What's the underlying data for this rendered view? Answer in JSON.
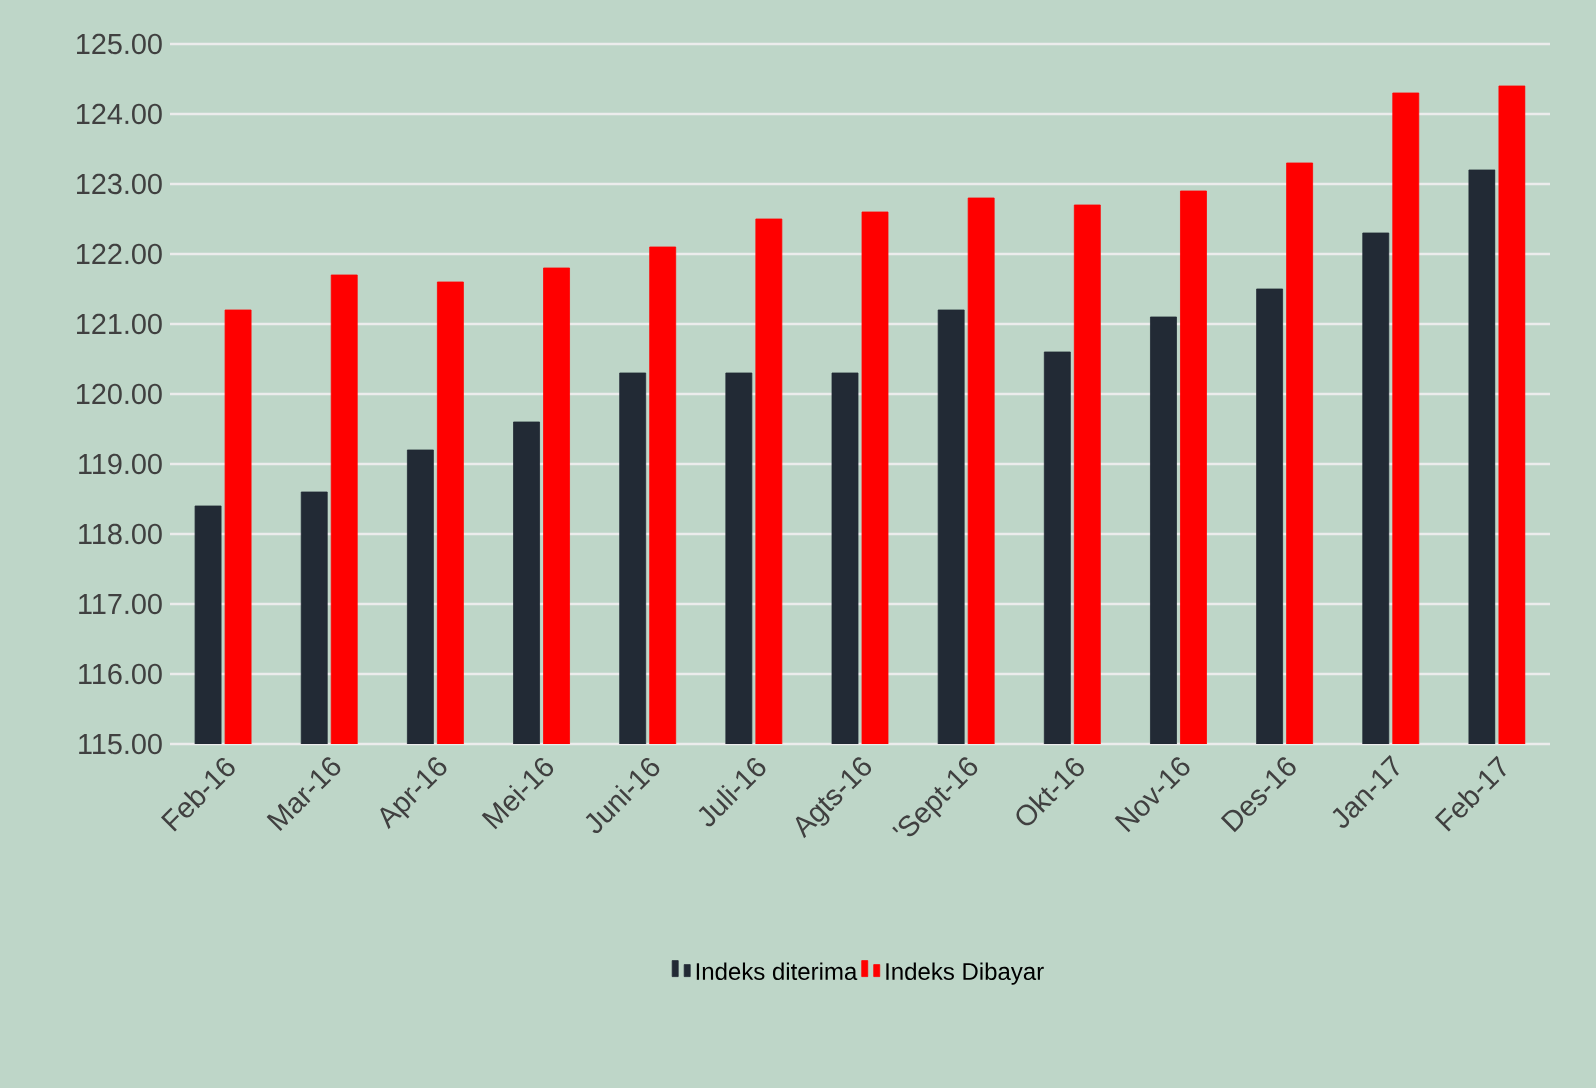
{
  "chart_data": {
    "type": "bar",
    "categories": [
      "Feb-16",
      "Mar-16",
      "Apr-16",
      "Mei-16",
      "Juni-16",
      "Juli-16",
      "Agts-16",
      "'Sept-16",
      "Okt-16",
      "Nov-16",
      "Des-16",
      "Jan-17",
      "Feb-17"
    ],
    "series": [
      {
        "name": "Indeks diterima",
        "color": "#222a35",
        "values": [
          118.4,
          118.6,
          119.2,
          119.6,
          120.3,
          120.3,
          120.3,
          121.2,
          120.6,
          121.1,
          121.5,
          122.3,
          123.2
        ]
      },
      {
        "name": "Indeks Dibayar",
        "color": "#ff0000",
        "values": [
          121.2,
          121.7,
          121.6,
          121.8,
          122.1,
          122.5,
          122.6,
          122.8,
          122.7,
          122.9,
          123.3,
          124.3,
          124.4
        ]
      }
    ],
    "ylim": [
      115,
      125
    ],
    "yticks": [
      {
        "value": 115,
        "label": "115.00"
      },
      {
        "value": 116,
        "label": "116.00"
      },
      {
        "value": 117,
        "label": "117.00"
      },
      {
        "value": 118,
        "label": "118.00"
      },
      {
        "value": 119,
        "label": "119.00"
      },
      {
        "value": 120,
        "label": "120.00"
      },
      {
        "value": 121,
        "label": "121.00"
      },
      {
        "value": 122,
        "label": "122.00"
      },
      {
        "value": 123,
        "label": "123.00"
      },
      {
        "value": 124,
        "label": "124.00"
      },
      {
        "value": 125,
        "label": "125.00"
      }
    ],
    "grid": "y",
    "legend": "bottom"
  }
}
